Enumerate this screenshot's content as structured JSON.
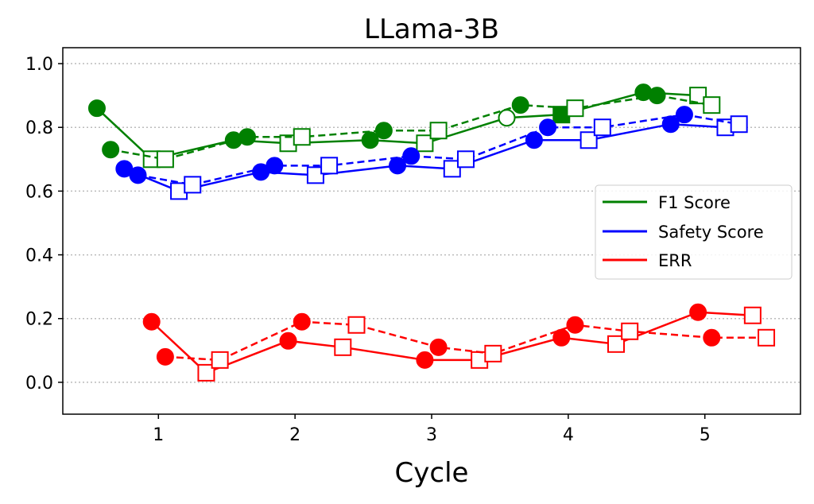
{
  "chart_data": {
    "type": "line",
    "title": "LLama-3B",
    "xlabel": "Cycle",
    "ylabel": "",
    "xlim": [
      0.3,
      5.7
    ],
    "ylim": [
      -0.1,
      1.05
    ],
    "xticks": [
      1,
      2,
      3,
      4,
      5
    ],
    "yticks": [
      0.0,
      0.2,
      0.4,
      0.6,
      0.8,
      1.0
    ],
    "grid": "horizontal dotted",
    "legend_position": "center-right",
    "legend": [
      {
        "label": "F1 Score",
        "color": "#008000"
      },
      {
        "label": "Safety Score",
        "color": "#0000ff"
      },
      {
        "label": "ERR",
        "color": "#ff0000"
      }
    ],
    "series": [
      {
        "metric": "F1 Score",
        "color": "#008000",
        "dash": false,
        "x": [
          0.55,
          0.95,
          1.55,
          1.95,
          2.55,
          2.95,
          3.55,
          3.95,
          4.55,
          4.95
        ],
        "y": [
          0.86,
          0.7,
          0.76,
          0.75,
          0.76,
          0.75,
          0.83,
          0.84,
          0.91,
          0.9
        ],
        "markers": [
          "circle",
          "square",
          "circle",
          "square",
          "circle",
          "square",
          "circle-open",
          "square-filled",
          "circle",
          "square"
        ]
      },
      {
        "metric": "F1 Score",
        "color": "#008000",
        "dash": true,
        "x": [
          0.65,
          1.05,
          1.65,
          2.05,
          2.65,
          3.05,
          3.65,
          4.05,
          4.65,
          5.05
        ],
        "y": [
          0.73,
          0.7,
          0.77,
          0.77,
          0.79,
          0.79,
          0.87,
          0.86,
          0.9,
          0.87
        ],
        "markers": [
          "circle",
          "square",
          "circle",
          "square",
          "circle",
          "square",
          "circle",
          "square",
          "circle",
          "square"
        ]
      },
      {
        "metric": "Safety Score",
        "color": "#0000ff",
        "dash": false,
        "x": [
          0.75,
          1.15,
          1.75,
          2.15,
          2.75,
          3.15,
          3.75,
          4.15,
          4.75,
          5.15
        ],
        "y": [
          0.67,
          0.6,
          0.66,
          0.65,
          0.68,
          0.67,
          0.76,
          0.76,
          0.81,
          0.8
        ],
        "markers": [
          "circle",
          "square",
          "circle",
          "square",
          "circle",
          "square",
          "circle",
          "square",
          "circle",
          "square"
        ]
      },
      {
        "metric": "Safety Score",
        "color": "#0000ff",
        "dash": true,
        "x": [
          0.85,
          1.25,
          1.85,
          2.25,
          2.85,
          3.25,
          3.85,
          4.25,
          4.85,
          5.25
        ],
        "y": [
          0.65,
          0.62,
          0.68,
          0.68,
          0.71,
          0.7,
          0.8,
          0.8,
          0.84,
          0.81
        ],
        "markers": [
          "circle",
          "square",
          "circle",
          "square",
          "circle",
          "square",
          "circle",
          "square",
          "circle",
          "square"
        ]
      },
      {
        "metric": "ERR",
        "color": "#ff0000",
        "dash": false,
        "x": [
          0.95,
          1.35,
          1.95,
          2.35,
          2.95,
          3.35,
          3.95,
          4.35,
          4.95,
          5.35
        ],
        "y": [
          0.19,
          0.03,
          0.13,
          0.11,
          0.07,
          0.07,
          0.14,
          0.12,
          0.22,
          0.21
        ],
        "markers": [
          "circle",
          "square",
          "circle",
          "square",
          "circle",
          "square",
          "circle",
          "square",
          "circle",
          "square"
        ]
      },
      {
        "metric": "ERR",
        "color": "#ff0000",
        "dash": true,
        "x": [
          1.05,
          1.45,
          2.05,
          2.45,
          3.05,
          3.45,
          4.05,
          4.45,
          5.05,
          5.45
        ],
        "y": [
          0.08,
          0.07,
          0.19,
          0.18,
          0.11,
          0.09,
          0.18,
          0.16,
          0.14,
          0.14
        ],
        "markers": [
          "circle",
          "square",
          "circle",
          "square",
          "circle",
          "square",
          "circle",
          "square",
          "circle",
          "square"
        ]
      }
    ]
  }
}
